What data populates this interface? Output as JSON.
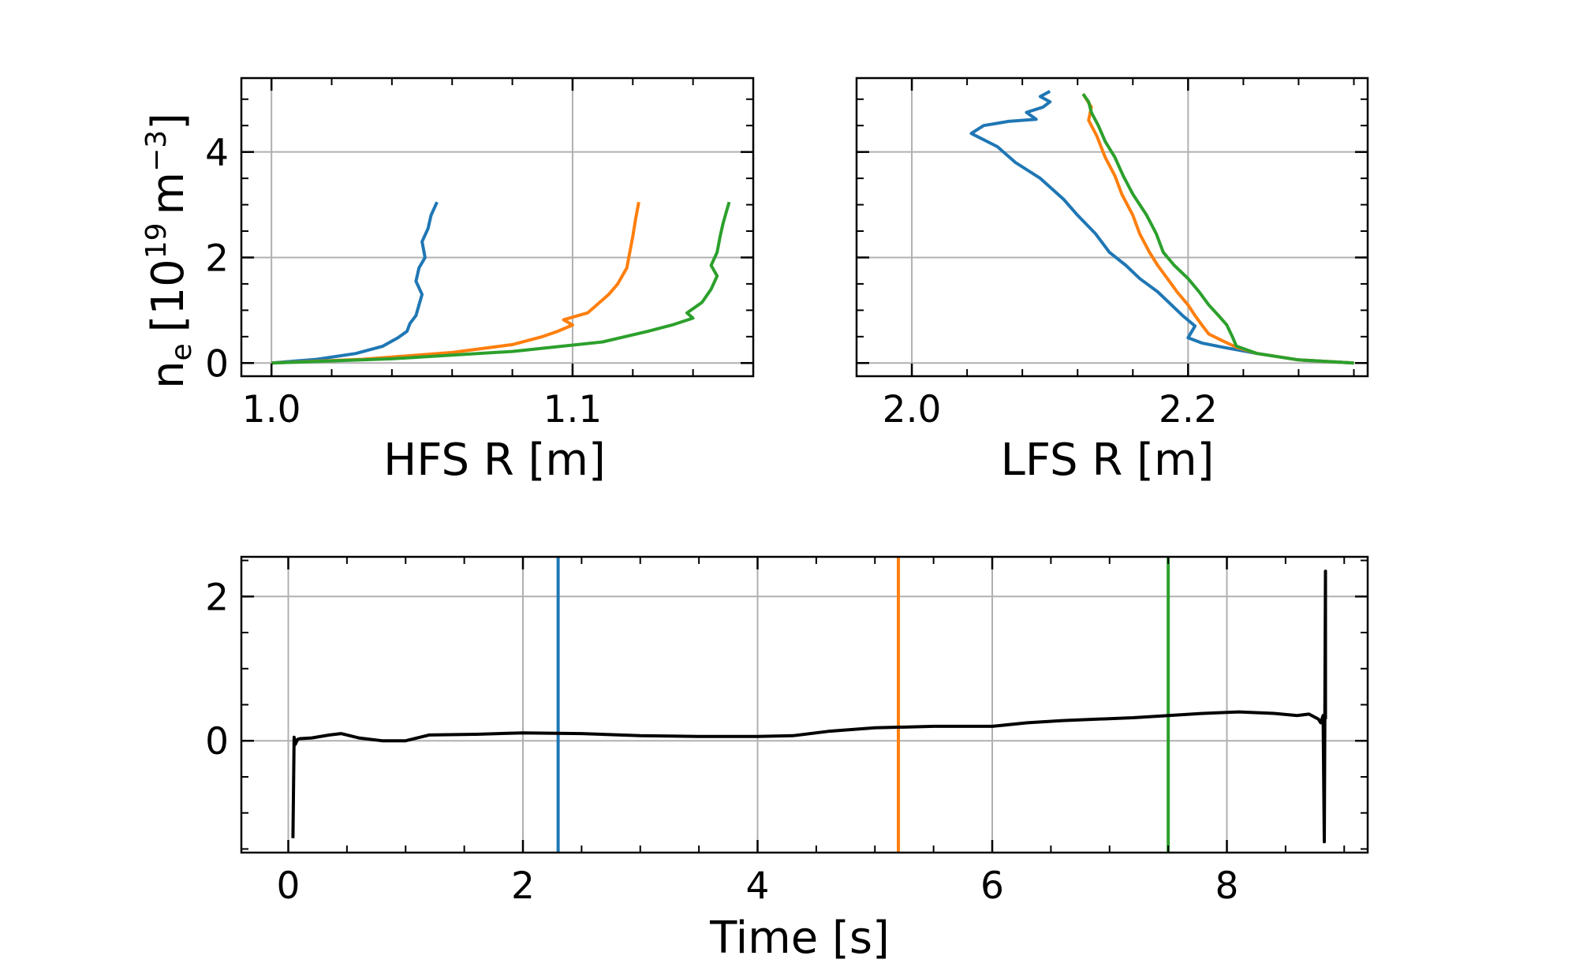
{
  "chart_data": [
    {
      "type": "line",
      "xlabel": "HFS R [m]",
      "ylabel": "n_e [10^19 m^-3]",
      "ylabel_parts": {
        "main": "n",
        "sub": "e",
        "bracket_open": "[10",
        "sup19": "19",
        "unit": "m",
        "supm3": "−3",
        "bracket_close": "]"
      },
      "xlim": [
        0.99,
        1.16
      ],
      "ylim": [
        -0.25,
        5.4
      ],
      "xticks": [
        1.0,
        1.1
      ],
      "xtick_labels": [
        "1.0",
        "1.1"
      ],
      "yticks": [
        0,
        2,
        4
      ],
      "ytick_labels": [
        "0",
        "2",
        "4"
      ],
      "grid": true,
      "series": [
        {
          "color": "#1f77b4",
          "x": [
            1.0,
            1.015,
            1.028,
            1.037,
            1.042,
            1.045,
            1.046,
            1.048,
            1.049,
            1.05,
            1.048,
            1.049,
            1.051,
            1.05,
            1.052,
            1.053,
            1.055
          ],
          "y": [
            0.0,
            0.07,
            0.18,
            0.32,
            0.48,
            0.6,
            0.75,
            0.9,
            1.1,
            1.3,
            1.55,
            1.8,
            2.0,
            2.3,
            2.55,
            2.8,
            3.05
          ]
        },
        {
          "color": "#ff7f0e",
          "x": [
            1.0,
            1.03,
            1.06,
            1.08,
            1.09,
            1.095,
            1.1,
            1.097,
            1.105,
            1.108,
            1.112,
            1.115,
            1.118,
            1.119,
            1.12,
            1.121,
            1.122
          ],
          "y": [
            0.0,
            0.07,
            0.2,
            0.35,
            0.5,
            0.6,
            0.72,
            0.82,
            0.95,
            1.1,
            1.3,
            1.5,
            1.8,
            2.1,
            2.4,
            2.75,
            3.05
          ]
        },
        {
          "color": "#2ca02c",
          "x": [
            1.0,
            1.04,
            1.08,
            1.11,
            1.125,
            1.133,
            1.14,
            1.138,
            1.143,
            1.146,
            1.148,
            1.146,
            1.148,
            1.149,
            1.15,
            1.151,
            1.152
          ],
          "y": [
            0.0,
            0.08,
            0.22,
            0.4,
            0.6,
            0.72,
            0.85,
            0.95,
            1.15,
            1.4,
            1.65,
            1.85,
            2.1,
            2.4,
            2.65,
            2.85,
            3.05
          ]
        }
      ]
    },
    {
      "type": "line",
      "xlabel": "LFS R [m]",
      "xlim": [
        1.96,
        2.33
      ],
      "ylim": [
        -0.25,
        5.4
      ],
      "xticks": [
        2.0,
        2.2
      ],
      "xtick_labels": [
        "2.0",
        "2.2"
      ],
      "yticks": [
        0,
        2,
        4
      ],
      "ytick_labels": [],
      "grid": true,
      "series": [
        {
          "color": "#1f77b4",
          "x": [
            2.32,
            2.28,
            2.25,
            2.225,
            2.21,
            2.2,
            2.205,
            2.196,
            2.188,
            2.178,
            2.165,
            2.155,
            2.143,
            2.133,
            2.12,
            2.11,
            2.093,
            2.075,
            2.062,
            2.043,
            2.052,
            2.07,
            2.09,
            2.083,
            2.095,
            2.1,
            2.093,
            2.1
          ],
          "y": [
            0.0,
            0.06,
            0.18,
            0.3,
            0.38,
            0.48,
            0.7,
            0.9,
            1.1,
            1.35,
            1.6,
            1.85,
            2.1,
            2.45,
            2.8,
            3.1,
            3.5,
            3.8,
            4.1,
            4.35,
            4.5,
            4.58,
            4.62,
            4.75,
            4.85,
            4.95,
            5.05,
            5.15
          ]
        },
        {
          "color": "#ff7f0e",
          "x": [
            2.32,
            2.28,
            2.25,
            2.235,
            2.225,
            2.215,
            2.21,
            2.205,
            2.2,
            2.192,
            2.185,
            2.178,
            2.172,
            2.165,
            2.16,
            2.152,
            2.147,
            2.14,
            2.134,
            2.128,
            2.13,
            2.124
          ],
          "y": [
            0.0,
            0.06,
            0.18,
            0.3,
            0.42,
            0.55,
            0.72,
            0.9,
            1.1,
            1.35,
            1.6,
            1.85,
            2.1,
            2.45,
            2.8,
            3.2,
            3.55,
            3.9,
            4.3,
            4.6,
            4.85,
            5.1
          ]
        },
        {
          "color": "#2ca02c",
          "x": [
            2.32,
            2.28,
            2.25,
            2.235,
            2.232,
            2.228,
            2.222,
            2.215,
            2.208,
            2.2,
            2.19,
            2.182,
            2.177,
            2.17,
            2.16,
            2.153,
            2.147,
            2.14,
            2.135,
            2.13,
            2.128,
            2.124
          ],
          "y": [
            0.0,
            0.06,
            0.18,
            0.32,
            0.5,
            0.72,
            0.9,
            1.1,
            1.35,
            1.6,
            1.85,
            2.1,
            2.45,
            2.8,
            3.2,
            3.55,
            3.9,
            4.2,
            4.5,
            4.75,
            4.95,
            5.1
          ]
        }
      ]
    },
    {
      "type": "line",
      "xlabel": "Time [s]",
      "xlim": [
        -0.4,
        9.2
      ],
      "ylim": [
        -1.55,
        2.55
      ],
      "xticks": [
        0,
        2,
        4,
        6,
        8
      ],
      "xtick_labels": [
        "0",
        "2",
        "4",
        "6",
        "8"
      ],
      "yticks": [
        0,
        2
      ],
      "ytick_labels": [
        "0",
        "2"
      ],
      "grid": true,
      "series": [
        {
          "color": "#000000",
          "x": [
            0.04,
            0.05,
            0.06,
            0.08,
            0.1,
            0.2,
            0.35,
            0.45,
            0.6,
            0.8,
            1.0,
            1.2,
            1.6,
            2.0,
            2.5,
            3.0,
            3.5,
            4.0,
            4.3,
            4.6,
            5.0,
            5.5,
            6.0,
            6.3,
            6.6,
            6.9,
            7.2,
            7.5,
            7.8,
            8.1,
            8.4,
            8.6,
            8.7,
            8.78,
            8.8,
            8.82,
            8.83,
            8.84,
            8.84
          ],
          "y": [
            -1.35,
            0.05,
            -0.05,
            0.02,
            0.03,
            0.04,
            0.08,
            0.1,
            0.04,
            0.0,
            0.0,
            0.08,
            0.09,
            0.11,
            0.1,
            0.07,
            0.06,
            0.06,
            0.07,
            0.13,
            0.18,
            0.2,
            0.2,
            0.25,
            0.28,
            0.3,
            0.32,
            0.35,
            0.38,
            0.4,
            0.38,
            0.35,
            0.37,
            0.3,
            0.25,
            0.35,
            -1.4,
            2.35,
            0.3
          ]
        }
      ],
      "vlines": [
        {
          "x": 2.3,
          "color": "#1f77b4"
        },
        {
          "x": 5.2,
          "color": "#ff7f0e"
        },
        {
          "x": 7.5,
          "color": "#2ca02c"
        }
      ]
    }
  ]
}
